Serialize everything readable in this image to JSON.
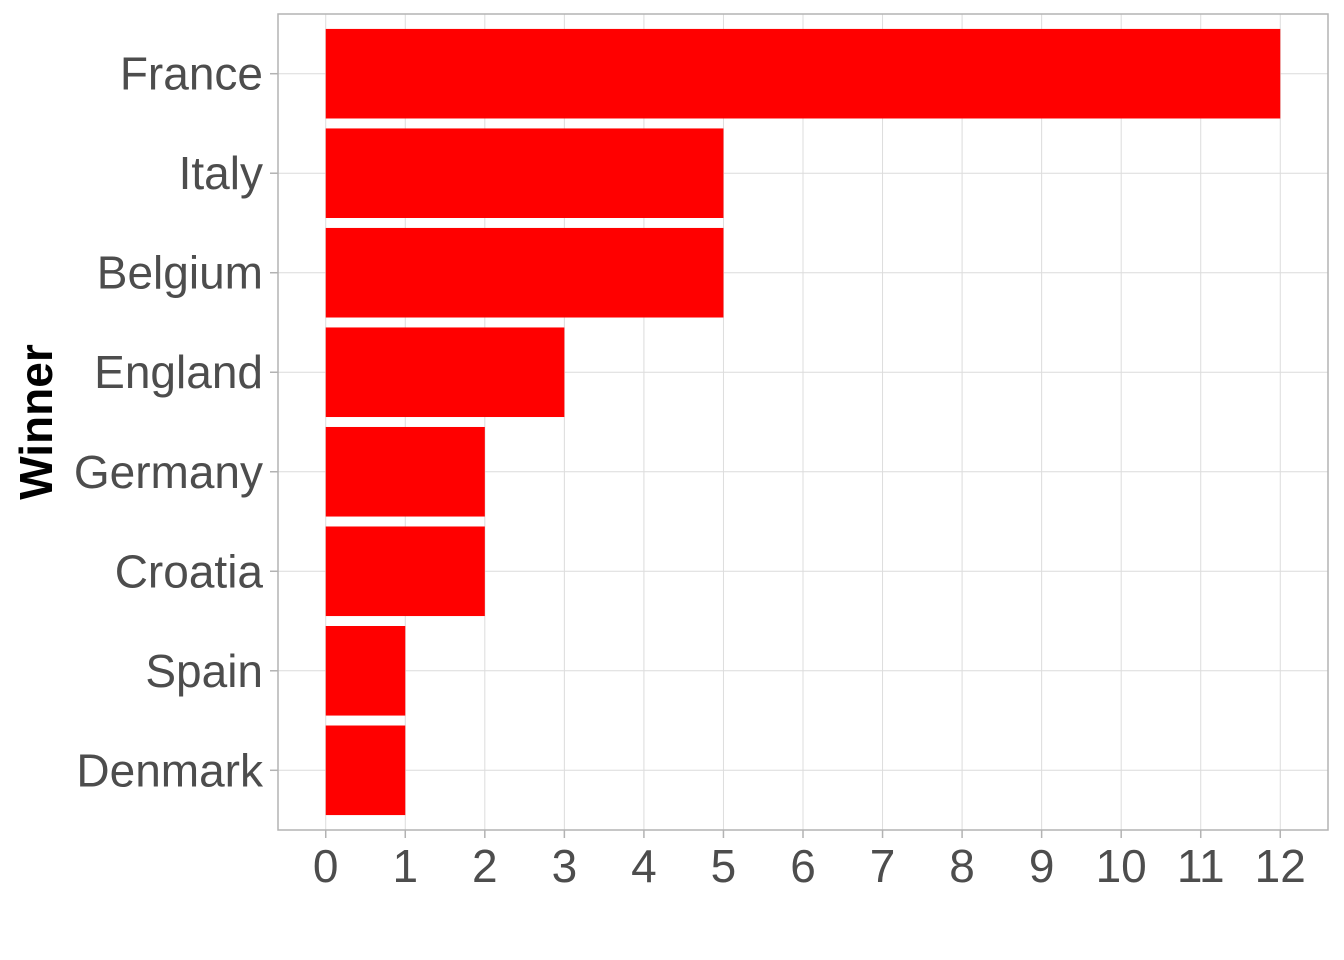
{
  "chart_data": {
    "type": "bar",
    "orientation": "horizontal",
    "categories": [
      "France",
      "Italy",
      "Belgium",
      "England",
      "Germany",
      "Croatia",
      "Spain",
      "Denmark"
    ],
    "values": [
      12,
      5,
      5,
      3,
      2,
      2,
      1,
      1
    ],
    "xlabel": "",
    "ylabel": "Winner",
    "xlim": [
      -0.6,
      12.6
    ],
    "xticks": [
      0,
      1,
      2,
      3,
      4,
      5,
      6,
      7,
      8,
      9,
      10,
      11,
      12
    ],
    "grid": true,
    "legend": "none",
    "bar_color": "#ff0000"
  }
}
